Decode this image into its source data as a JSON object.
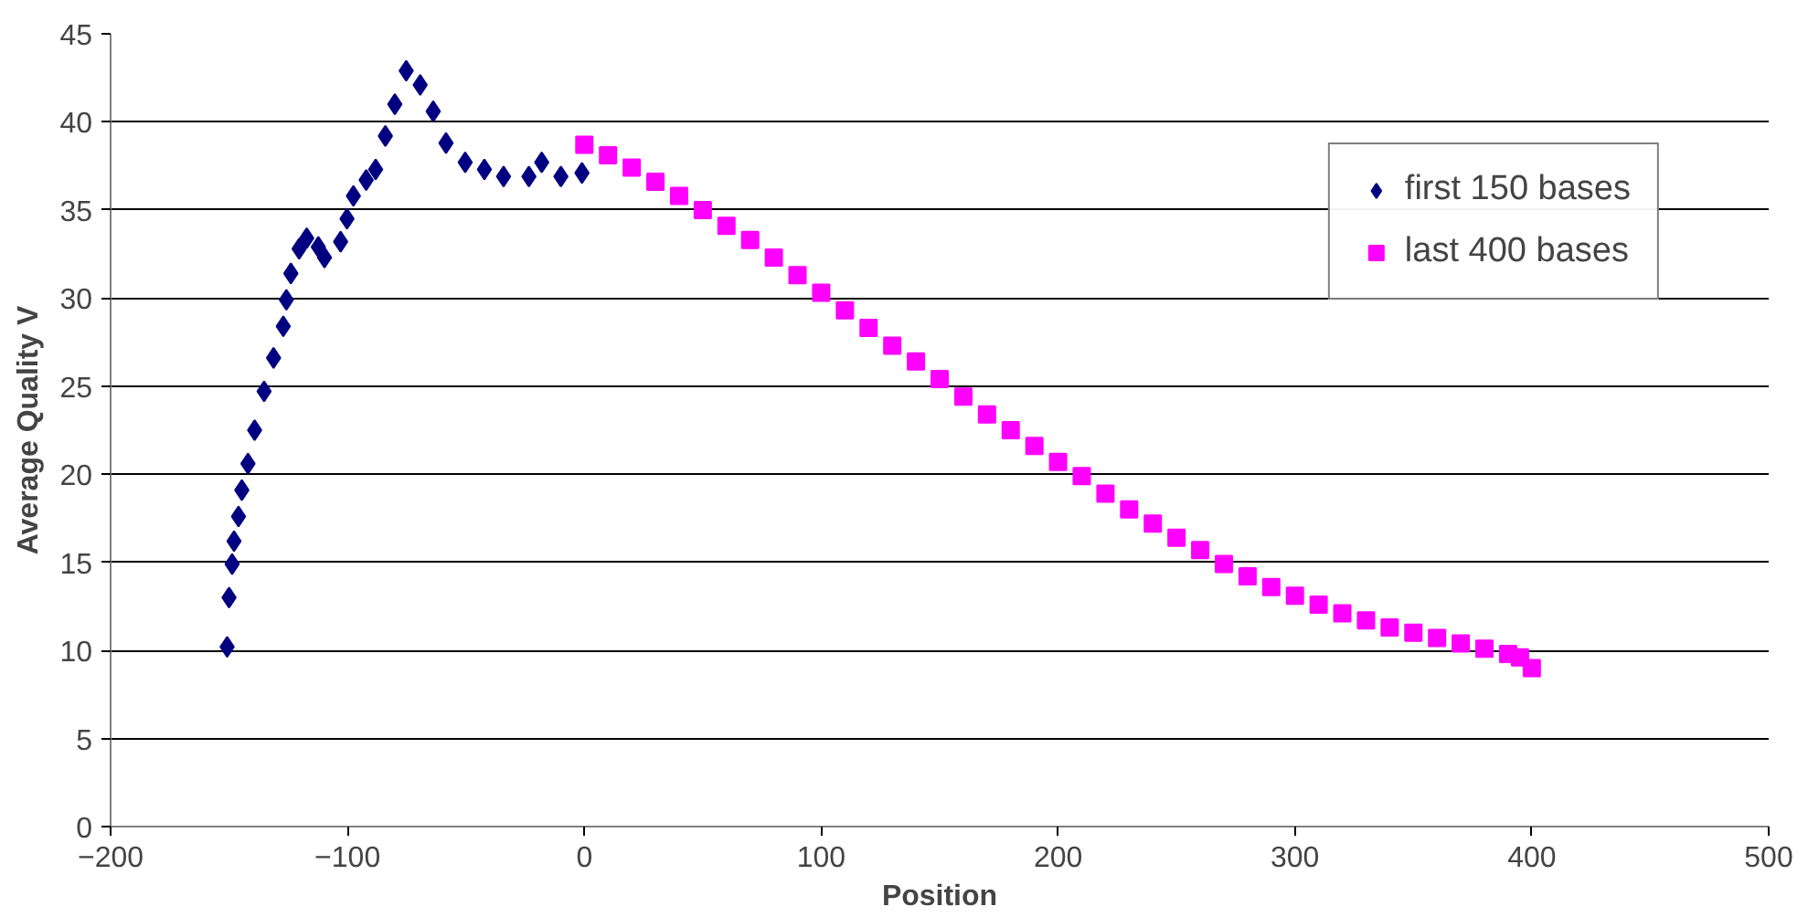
{
  "chart_data": {
    "type": "scatter",
    "xlabel": "Position",
    "ylabel": "Average Quality V",
    "xlim": [
      -200,
      500
    ],
    "xticks": [
      -200,
      -100,
      0,
      100,
      200,
      300,
      400,
      500
    ],
    "ylim": [
      0,
      45
    ],
    "yticks": [
      0,
      5,
      10,
      15,
      20,
      25,
      30,
      35,
      40,
      45
    ],
    "grid": "y",
    "legend": "top right",
    "series": [
      {
        "name": "first 150 bases",
        "color": "#000080",
        "marker": "diamond",
        "x": [
          -150.8,
          -150,
          -148.7,
          -147.9,
          -146,
          -144.6,
          -142,
          -139.2,
          -135.2,
          -131.2,
          -127.1,
          -125.8,
          -123.9,
          -120.4,
          -117.2,
          -112.3,
          -109.7,
          -102.9,
          -100.2,
          -97.5,
          -92.1,
          -88.1,
          -84,
          -80,
          -75.2,
          -69.3,
          -63.8,
          -58.4,
          -50.3,
          -42.2,
          -34.1,
          -23.4,
          -18,
          -9.9,
          -1
        ],
        "values": [
          10.2,
          13,
          14.9,
          16.2,
          17.6,
          19.1,
          20.6,
          22.5,
          24.7,
          26.6,
          28.4,
          29.9,
          31.4,
          32.8,
          33.4,
          32.9,
          32.3,
          33.2,
          34.5,
          35.8,
          36.7,
          37.3,
          39.2,
          41,
          42.9,
          42.1,
          40.6,
          38.8,
          37.7,
          37.3,
          36.9,
          36.9,
          37.7,
          36.9,
          37.1
        ]
      },
      {
        "name": "last 400 bases",
        "color": "#ff00ff",
        "marker": "square",
        "x": [
          0,
          10,
          20,
          30,
          40,
          50,
          60,
          70,
          80,
          90,
          100,
          110,
          120,
          130,
          140,
          150,
          160,
          170,
          180,
          190,
          200,
          210,
          220,
          230,
          240,
          250,
          260,
          270,
          280,
          290,
          300,
          310,
          320,
          330,
          340,
          350,
          360,
          370,
          380,
          390,
          395,
          400
        ],
        "values": [
          38.7,
          38.1,
          37.4,
          36.6,
          35.8,
          35,
          34.1,
          33.3,
          32.3,
          31.3,
          30.3,
          29.3,
          28.3,
          27.3,
          26.4,
          25.4,
          24.4,
          23.4,
          22.5,
          21.6,
          20.7,
          19.9,
          18.9,
          18,
          17.2,
          16.4,
          15.7,
          14.9,
          14.2,
          13.6,
          13.1,
          12.6,
          12.1,
          11.7,
          11.3,
          11,
          10.7,
          10.4,
          10.1,
          9.8,
          9.6,
          9
        ]
      }
    ]
  }
}
